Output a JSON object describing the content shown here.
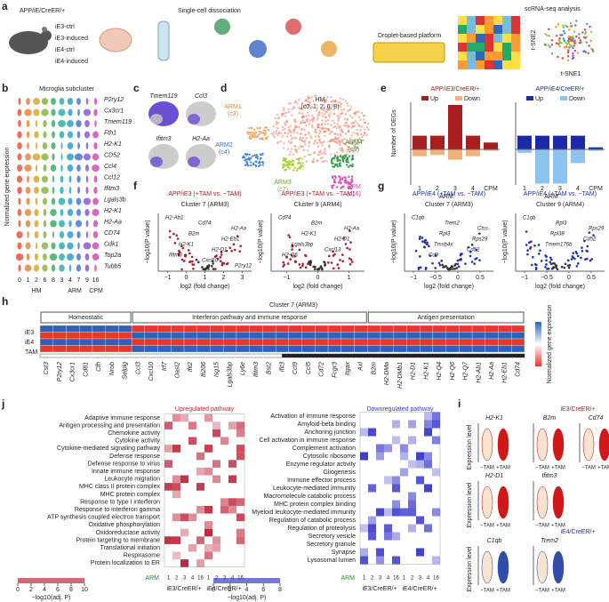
{
  "panel_labels": [
    "a",
    "b",
    "c",
    "d",
    "e",
    "f",
    "g",
    "h",
    "i",
    "j"
  ],
  "a": {
    "genotype": "APP/iE/CreER/+",
    "groups": [
      "iE3-ctrl",
      "iE3-induced",
      "iE4-ctrl",
      "iE4-induced"
    ],
    "step1": "Single-cell dissociation",
    "step2": "Droplet-based platform",
    "step3": "scRNA-seq analysis",
    "tsne_y": "t-SNE2",
    "tsne_x": "t-SNE1"
  },
  "b": {
    "title": "Microglia subcluster",
    "ylabel": "Normalized gene expression",
    "genes": [
      "P2ry12",
      "Cx3cr1",
      "Tmem119",
      "Fth1",
      "H2-K1",
      "CD52",
      "Ccl4",
      "Ccl12",
      "Ifitm3",
      "Lgals3b",
      "H2-K1",
      "H2-Aa",
      "CD74",
      "Cdk1",
      "Top2a",
      "Tubb5"
    ],
    "clusters": [
      "0",
      "1",
      "2",
      "6",
      "8",
      "3",
      "4",
      "7",
      "9",
      "16"
    ],
    "groups": [
      "HM",
      "ARM",
      "CPM"
    ]
  },
  "c": {
    "genes": [
      "Tmem119",
      "Ccl3",
      "Ifitm3",
      "H2-Aa"
    ]
  },
  "d": {
    "clusters": [
      {
        "name": "HM",
        "sub": "(c0, 1, 2, 6, 8)"
      },
      {
        "name": "ARM1",
        "sub": "(c3)"
      },
      {
        "name": "ARM2",
        "sub": "(c4)"
      },
      {
        "name": "ARM3",
        "sub": "(c7)"
      },
      {
        "name": "ARM4",
        "sub": "(c9)"
      },
      {
        "name": "CPM",
        "sub": "(c16)"
      }
    ]
  },
  "e": {
    "ylabel": "Number of DEGs",
    "xlabel": "ARM",
    "categories": [
      "1",
      "2",
      "3",
      "4",
      "CPM"
    ],
    "legend": [
      "Up",
      "Down"
    ],
    "charts": [
      {
        "title": "APP/iE3/CreER/+",
        "up": [
          20,
          20,
          65,
          20,
          10
        ],
        "down": [
          -10,
          -8,
          -15,
          -10,
          -2
        ]
      },
      {
        "title": "APP/iE4/CreER/+",
        "up": [
          20,
          20,
          20,
          20,
          3
        ],
        "down": [
          -5,
          -50,
          -50,
          -20,
          -2
        ]
      }
    ]
  },
  "f": {
    "xlabel": "log2 (fold change)",
    "ylabel": "−log10(P value)",
    "plots": [
      {
        "title": "APP/iE3 (+TAM vs. −TAM)",
        "subtitle": "Cluster 7 (ARM3)",
        "genes": [
          "H2-Ab1",
          "Cd74",
          "H2-Aa",
          "B2m",
          "H2-Eb1",
          "H2-K1",
          "H2-D1",
          "Ifitm3",
          "Cxcl10",
          "P2ry12"
        ],
        "xlim": [
          -1.5,
          3.5
        ],
        "xticks": [
          {
            "value": -1,
            "label": "−1"
          },
          0,
          1,
          2,
          3
        ]
      },
      {
        "title": "APP/iE3 (+TAM vs. −TAM)",
        "subtitle": "Cluster 9 (ARM4)",
        "genes": [
          "Cd74",
          "B2m",
          "H2-Aa",
          "H2-K1",
          "H2-D1",
          "Lgals3bp",
          "Cxcl13",
          "H2-Q6"
        ],
        "xlim": [
          -1.5,
          1.5
        ],
        "xticks": [
          {
            "value": -1,
            "label": "−1"
          },
          0,
          1
        ]
      }
    ]
  },
  "g": {
    "xlabel": "log2 (fold change)",
    "ylabel": "−log10(P value)",
    "plots": [
      {
        "title": "APP/iE4 (+TAM vs. −TAM)",
        "subtitle": "Cluster 7 (ARM3)",
        "genes": [
          "C1qb",
          "Trem2",
          "Ctss",
          "Rpl3",
          "Rps29",
          "Tmsb4x",
          "Cd52",
          "Cd9"
        ],
        "xlim": [
          -1.2,
          0.8
        ],
        "xticks": [
          {
            "value": -1,
            "label": "−1"
          },
          {
            "value": -0.5,
            "label": "−0.5"
          },
          0,
          0.5
        ]
      },
      {
        "title": "APP/iE4 (+TAM vs. −TAM)",
        "subtitle": "Cluster 9 (ARM4)",
        "genes": [
          "C1qb",
          "Rpl3",
          "Rps29",
          "Rpl38",
          "Cd52",
          "Tmem176b"
        ],
        "xlim": [
          -1.2,
          0.8
        ],
        "xticks": [
          {
            "value": -1,
            "label": "−1"
          },
          {
            "value": -0.5,
            "label": "−0.5"
          },
          0,
          0.5
        ]
      }
    ]
  },
  "h": {
    "title": "Cluster 7 (ARM3)",
    "groups": [
      "Homeostatic",
      "Interferon pathway and immune response",
      "Antigen presentation"
    ],
    "rows": [
      "iE3",
      "iE4",
      "TAM"
    ],
    "colorbar": "Normalized gene expression",
    "genes": [
      "Cst3",
      "P2ry12",
      "Cx3cr1",
      "Cd81",
      "Cfh",
      "Nrob",
      "Selplg",
      "Ccl3",
      "Cxcl10",
      "Irf7",
      "Oasl2",
      "Ifit2",
      "Ifi206",
      "Isg15",
      "Lgals3bp",
      "Ly6e",
      "Ifitm3",
      "Bst2",
      "Ifit3",
      "Ccl9",
      "Ccl5",
      "Cd72",
      "Fcgr3",
      "Itgax",
      "Axl",
      "B2m",
      "H2-DMa",
      "H2-DMb1",
      "H2-D1",
      "H2-K1",
      "H2-Q4",
      "H2-Q6",
      "H2-Q7",
      "H2-Ab1",
      "H2-Aa",
      "H2-Eb1",
      "Cd74"
    ]
  },
  "i": {
    "title1": "iE3/CreER/+",
    "title2": "iE4/CreER/+",
    "ylabel": "Expression level",
    "categories": [
      "−TAM",
      "+TAM"
    ],
    "genes": [
      "H2-K1",
      "B2m",
      "Cd74",
      "H2-D1",
      "Ifitm3",
      "C1qb",
      "Trem2"
    ]
  },
  "j": {
    "up_title": "Upregulated pathway",
    "down_title": "Downregulated pathway",
    "arm": "ARM",
    "columns": [
      "1",
      "2",
      "3",
      "4",
      "16",
      "1",
      "2",
      "3",
      "4",
      "16"
    ],
    "group_labels": [
      "iE3/CreER/+",
      "iE4/CreER/+"
    ],
    "colorbar_label": "−log10(adj. P)",
    "up_ticks": [
      0,
      2,
      4,
      6,
      8,
      10
    ],
    "down_ticks": [
      0,
      2,
      4,
      6,
      8
    ],
    "up": [
      "Adaptive immune response",
      "Antigen processing and presentation",
      "Chemokine activity",
      "Cytokine activity",
      "Cytokine-mediated signaling pathway",
      "Defense response",
      "Defense response to virus",
      "Innate immune response",
      "Leukocyte migration",
      "MHC class II protein complex",
      "MHC protein complex",
      "Response to type I interferon",
      "Response to interferon gamma",
      "ATP synthesis coupled electron transport",
      "Oxidative phosphorylation",
      "Oxidoreductase activity",
      "Protein targeting to membrane",
      "Translational initiation",
      "Respirasome",
      "Protein localization to ER"
    ],
    "down": [
      "Activation of immune response",
      "Amyloid-beta binding",
      "Anchoring junction",
      "Cell activation in immune response",
      "Complement activation",
      "Cytosolic ribosome",
      "Enzyme regulator activity",
      "Gliogenesis",
      "Immune effector process",
      "Leukocyte-mediated immunity",
      "Macromolecule catabolic process",
      "MHC protein complex binding",
      "Myeloid leukocyte-mediated immunity",
      "Regulation of catabolic process",
      "Regulation of proteolysis",
      "Secretory vesicle",
      "Secretory granule",
      "Synapse",
      "Lysosomal lumen"
    ]
  }
}
